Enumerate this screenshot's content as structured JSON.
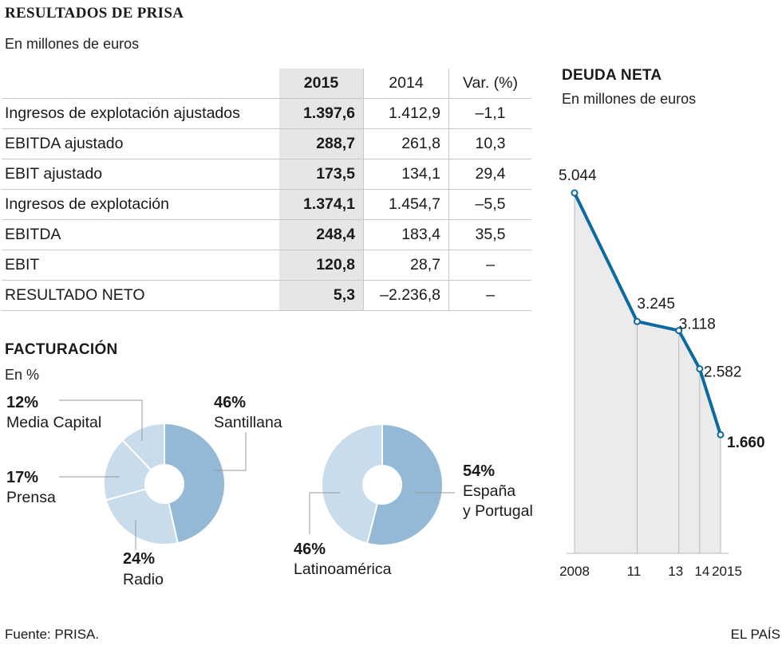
{
  "header": {
    "title": "RESULTADOS DE PRISA",
    "subtitle": "En millones de euros"
  },
  "table": {
    "columns": [
      "",
      "2015",
      "2014",
      "Var. (%)"
    ],
    "rows": [
      {
        "label": "Ingresos de explotación ajustados",
        "v2015": "1.397,6",
        "v2014": "1.412,9",
        "var": "–1,1"
      },
      {
        "label": "EBITDA ajustado",
        "v2015": "288,7",
        "v2014": "261,8",
        "var": "10,3"
      },
      {
        "label": "EBIT ajustado",
        "v2015": "173,5",
        "v2014": "134,1",
        "var": "29,4"
      },
      {
        "label": "Ingresos de explotación",
        "v2015": "1.374,1",
        "v2014": "1.454,7",
        "var": "–5,5"
      },
      {
        "label": "EBITDA",
        "v2015": "248,4",
        "v2014": "183,4",
        "var": "35,5"
      },
      {
        "label": "EBIT",
        "v2015": "120,8",
        "v2014": "28,7",
        "var": "–"
      },
      {
        "label": "RESULTADO NETO",
        "v2015": "5,3",
        "v2014": "–2.236,8",
        "var": "–"
      }
    ]
  },
  "facturacion": {
    "title": "FACTURACIÓN",
    "subtitle": "En %"
  },
  "footer": {
    "source": "Fuente: PRISA.",
    "brand": "EL PAÍS"
  },
  "colors": {
    "line": "#0d6aa0",
    "area": "#ebebeb",
    "slice_dark": "#93b9d6",
    "slice_light": "#c8dcec",
    "table_highlight": "#e6e6e6"
  },
  "chart_data": [
    {
      "type": "pie",
      "title": "FACTURACIÓN",
      "subtitle": "En %",
      "slices": [
        {
          "name_lines": [
            "Santillana"
          ],
          "value": 46,
          "label": "46%"
        },
        {
          "name_lines": [
            "Radio"
          ],
          "value": 24,
          "label": "24%"
        },
        {
          "name_lines": [
            "Prensa"
          ],
          "value": 17,
          "label": "17%"
        },
        {
          "name_lines": [
            "Media Capital"
          ],
          "value": 12,
          "label": "12%"
        }
      ]
    },
    {
      "type": "pie",
      "title": "FACTURACIÓN",
      "subtitle": "En %",
      "slices": [
        {
          "name_lines": [
            "España",
            "y Portugal"
          ],
          "value": 54,
          "label": "54%"
        },
        {
          "name_lines": [
            "Latinoamérica"
          ],
          "value": 46,
          "label": "46%"
        }
      ]
    },
    {
      "type": "area",
      "title": "DEUDA NETA",
      "subtitle": "En millones de euros",
      "x": [
        2008,
        2011,
        2013,
        2014,
        2015
      ],
      "tick_labels": [
        "2008",
        "11",
        "13",
        "14",
        "2015"
      ],
      "values": [
        5044,
        3245,
        3118,
        2582,
        1660
      ],
      "value_labels": [
        "5.044",
        "3.245",
        "3.118",
        "2.582",
        "1.660"
      ],
      "ylim": [
        0,
        5044
      ]
    }
  ]
}
